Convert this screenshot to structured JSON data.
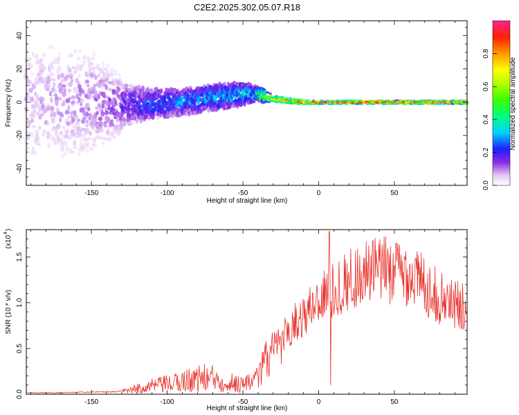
{
  "title": "C2E2.2025.302.05.07.R18",
  "chart_data": [
    {
      "type": "heatmap",
      "name": "spectrogram",
      "xlabel": "Height of straight line (km)",
      "ylabel": "Frequency (Hz)",
      "xlim": [
        -193,
        98
      ],
      "ylim": [
        -50,
        49
      ],
      "xticks": [
        -150,
        -100,
        -50,
        0,
        50
      ],
      "yticks": [
        -40,
        -20,
        0,
        20,
        40
      ],
      "colorbar": {
        "label": "Normalized spectral amplitude",
        "range": [
          0,
          1
        ],
        "ticks": [
          "0.0",
          "0.2",
          "0.4",
          "0.6",
          "0.8"
        ],
        "tick_values": [
          0.0,
          0.2,
          0.4,
          0.6,
          0.8
        ]
      },
      "ridge": [
        {
          "x": -190,
          "f": 0,
          "amp": 0.08,
          "spread": 30
        },
        {
          "x": -150,
          "f": 0,
          "amp": 0.12,
          "spread": 22
        },
        {
          "x": -130,
          "f": -2,
          "amp": 0.18,
          "spread": 12
        },
        {
          "x": -110,
          "f": -1,
          "amp": 0.26,
          "spread": 8
        },
        {
          "x": -90,
          "f": 0,
          "amp": 0.3,
          "spread": 7
        },
        {
          "x": -70,
          "f": 3,
          "amp": 0.32,
          "spread": 7
        },
        {
          "x": -50,
          "f": 5,
          "amp": 0.35,
          "spread": 6
        },
        {
          "x": -40,
          "f": 5,
          "amp": 0.4,
          "spread": 4
        },
        {
          "x": -30,
          "f": 2,
          "amp": 0.8,
          "spread": 2
        },
        {
          "x": -20,
          "f": 1,
          "amp": 0.85,
          "spread": 1.5
        },
        {
          "x": -10,
          "f": 0,
          "amp": 0.9,
          "spread": 1.2
        },
        {
          "x": 0,
          "f": 0,
          "amp": 0.95,
          "spread": 1
        },
        {
          "x": 20,
          "f": 0,
          "amp": 0.95,
          "spread": 1
        },
        {
          "x": 95,
          "f": 0,
          "amp": 0.95,
          "spread": 1
        }
      ]
    },
    {
      "type": "line",
      "name": "snr",
      "xlabel": "Height of straight line (km)",
      "ylabel": "SNR (10 * v/v)",
      "y_scale_label": "(x10",
      "y_scale_exponent": "4",
      "xlim": [
        -193,
        98
      ],
      "ylim": [
        0,
        1.8
      ],
      "xticks": [
        -150,
        -100,
        -50,
        0,
        50
      ],
      "yticks": [
        "0.0",
        "0.5",
        "1.0",
        "1.5"
      ],
      "ytick_values": [
        0.0,
        0.5,
        1.0,
        1.5
      ],
      "color": "#e8302a",
      "envelope": {
        "x": [
          -193,
          -170,
          -150,
          -135,
          -125,
          -115,
          -105,
          -95,
          -85,
          -75,
          -65,
          -55,
          -45,
          -40,
          -35,
          -30,
          -25,
          -20,
          -15,
          -10,
          -5,
          0,
          5,
          10,
          15,
          20,
          30,
          40,
          50,
          60,
          70,
          80,
          90,
          98
        ],
        "y": [
          0.01,
          0.01,
          0.02,
          0.02,
          0.04,
          0.08,
          0.1,
          0.12,
          0.16,
          0.18,
          0.16,
          0.12,
          0.12,
          0.28,
          0.45,
          0.55,
          0.62,
          0.7,
          0.8,
          0.85,
          0.95,
          1.05,
          1.1,
          1.12,
          1.2,
          1.25,
          1.32,
          1.36,
          1.36,
          1.32,
          1.2,
          1.05,
          0.98,
          0.95
        ]
      },
      "spikes": [
        {
          "x": 7,
          "y": 1.78
        },
        {
          "x": 8,
          "y": 0.1
        }
      ]
    }
  ]
}
